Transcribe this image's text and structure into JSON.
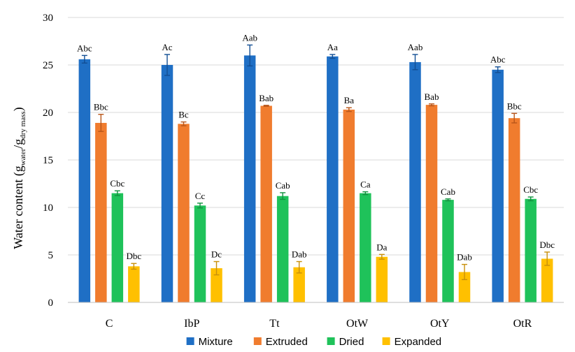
{
  "chart_data": {
    "type": "bar",
    "title": "",
    "xlabel": "",
    "ylabel": {
      "main": "Water content (g",
      "sub1": "water",
      "sep": "/g",
      "sub2": "dry mass",
      "close": ")"
    },
    "ylim": [
      0,
      30
    ],
    "yticks": [
      0,
      5,
      10,
      15,
      20,
      25,
      30
    ],
    "grid": true,
    "legend_position": "bottom",
    "categories": [
      "C",
      "IbP",
      "Tt",
      "OtW",
      "OtY",
      "OtR"
    ],
    "series": [
      {
        "name": "Mixture",
        "color": "#1f6fc5",
        "values": [
          25.6,
          25.0,
          26.0,
          25.9,
          25.3,
          24.5
        ],
        "errors": [
          0.4,
          1.1,
          1.1,
          0.2,
          0.8,
          0.3
        ],
        "labels": [
          "Abc",
          "Ac",
          "Aab",
          "Aa",
          "Aab",
          "Abc"
        ]
      },
      {
        "name": "Extruded",
        "color": "#f07c2e",
        "values": [
          18.9,
          18.8,
          20.7,
          20.3,
          20.8,
          19.4
        ],
        "errors": [
          0.9,
          0.2,
          0.05,
          0.2,
          0.1,
          0.5
        ],
        "labels": [
          "Bbc",
          "Bc",
          "Bab",
          "Ba",
          "Bab",
          "Bbc"
        ]
      },
      {
        "name": "Dried",
        "color": "#1fc25a",
        "values": [
          11.5,
          10.2,
          11.2,
          11.5,
          10.8,
          10.9
        ],
        "errors": [
          0.25,
          0.25,
          0.35,
          0.15,
          0.1,
          0.2
        ],
        "labels": [
          "Cbc",
          "Cc",
          "Cab",
          "Ca",
          "Cab",
          "Cbc"
        ]
      },
      {
        "name": "Expanded",
        "color": "#ffc000",
        "values": [
          3.8,
          3.6,
          3.7,
          4.8,
          3.2,
          4.6
        ],
        "errors": [
          0.3,
          0.7,
          0.6,
          0.25,
          0.8,
          0.7
        ],
        "labels": [
          "Dbc",
          "Dc",
          "Dab",
          "Da",
          "Dab",
          "Dbc"
        ]
      }
    ]
  }
}
